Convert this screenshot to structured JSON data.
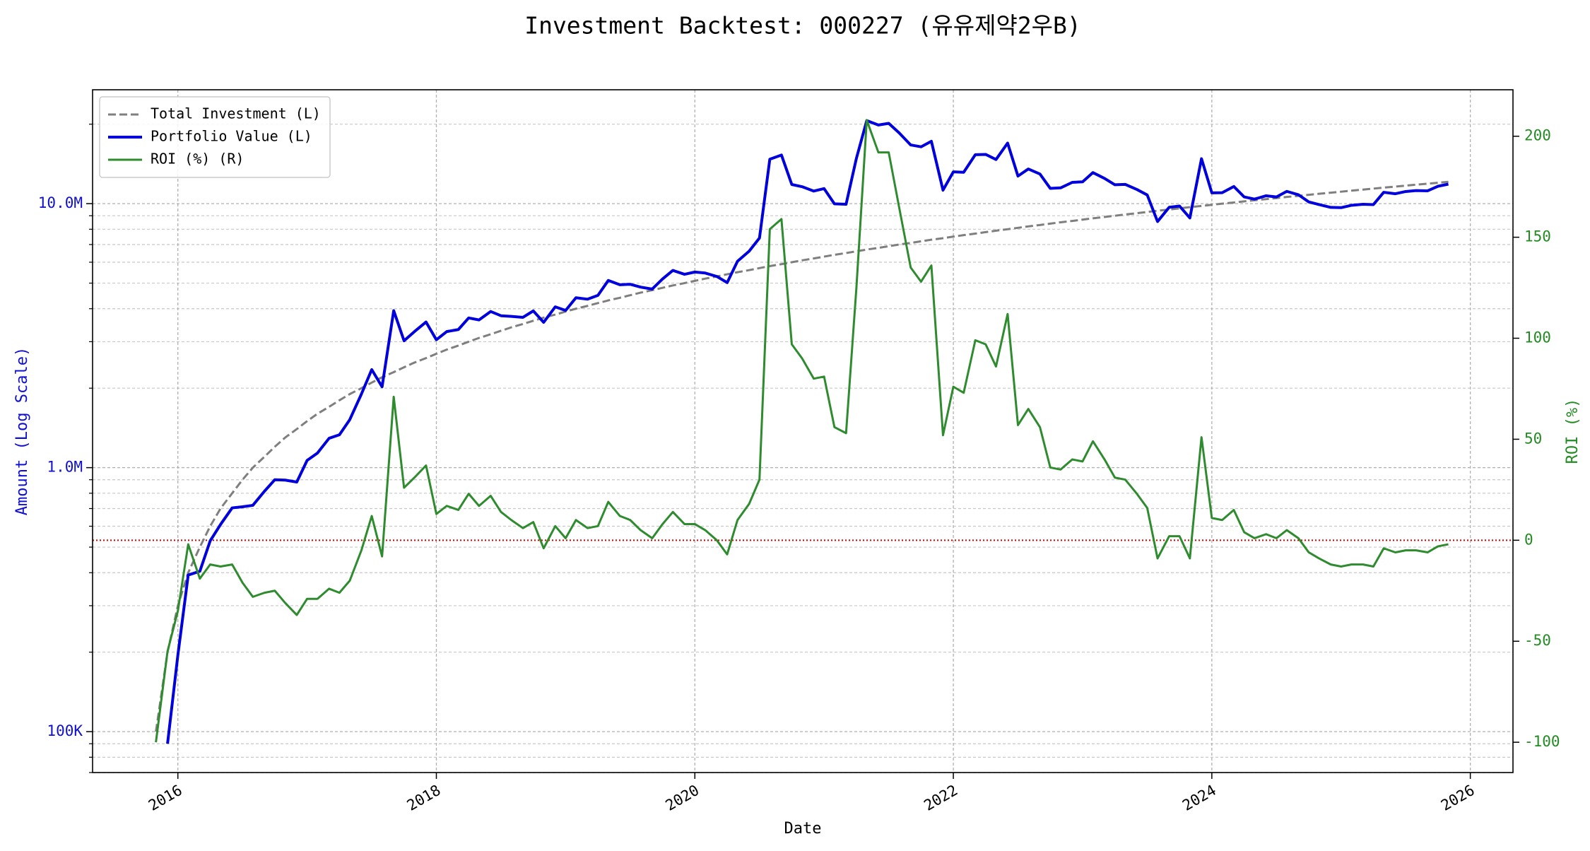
{
  "chart_data": {
    "type": "line",
    "title": "Investment Backtest: 000227 (유유제약2우B)",
    "x_label": "Date",
    "y_label": "Amount (Log Scale)",
    "y2_label": "ROI (%)",
    "y_log": true,
    "grid": true,
    "legend_position": "upper left",
    "xlim": [
      2015.34,
      2026.33
    ],
    "xticks": [
      2016,
      2018,
      2020,
      2022,
      2024,
      2026
    ],
    "ylim": [
      70000,
      27000000
    ],
    "yticks": [
      {
        "value": 100000,
        "label": "100K"
      },
      {
        "value": 1000000,
        "label": "1.0M"
      },
      {
        "value": 10000000,
        "label": "10.0M"
      }
    ],
    "yminorticks": [
      70000,
      80000,
      90000,
      200000,
      300000,
      400000,
      500000,
      600000,
      700000,
      800000,
      900000,
      2000000,
      3000000,
      4000000,
      5000000,
      6000000,
      7000000,
      8000000,
      9000000,
      20000000
    ],
    "y2lim": [
      -115,
      223
    ],
    "y2ticks": [
      -100,
      -50,
      0,
      50,
      100,
      150,
      200
    ],
    "y_color": "#1010d0",
    "y2_color": "#228b22",
    "hlines": [
      {
        "axis": "y2",
        "value": 0,
        "color": "#cc0000",
        "style": "dotted"
      }
    ],
    "x": [
      2015.83,
      2015.92,
      2016.0,
      2016.08,
      2016.17,
      2016.25,
      2016.33,
      2016.42,
      2016.5,
      2016.58,
      2016.67,
      2016.75,
      2016.83,
      2016.92,
      2017.0,
      2017.08,
      2017.17,
      2017.25,
      2017.33,
      2017.42,
      2017.5,
      2017.58,
      2017.67,
      2017.75,
      2017.83,
      2017.92,
      2018.0,
      2018.08,
      2018.17,
      2018.25,
      2018.33,
      2018.42,
      2018.5,
      2018.58,
      2018.67,
      2018.75,
      2018.83,
      2018.92,
      2019.0,
      2019.08,
      2019.17,
      2019.25,
      2019.33,
      2019.42,
      2019.5,
      2019.58,
      2019.67,
      2019.75,
      2019.83,
      2019.92,
      2020.0,
      2020.08,
      2020.17,
      2020.25,
      2020.33,
      2020.42,
      2020.5,
      2020.58,
      2020.67,
      2020.75,
      2020.83,
      2020.92,
      2021.0,
      2021.08,
      2021.17,
      2021.25,
      2021.33,
      2021.42,
      2021.5,
      2021.58,
      2021.67,
      2021.75,
      2021.83,
      2021.92,
      2022.0,
      2022.08,
      2022.17,
      2022.25,
      2022.33,
      2022.42,
      2022.5,
      2022.58,
      2022.67,
      2022.75,
      2022.83,
      2022.92,
      2023.0,
      2023.08,
      2023.17,
      2023.25,
      2023.33,
      2023.42,
      2023.5,
      2023.58,
      2023.67,
      2023.75,
      2023.83,
      2023.92,
      2024.0,
      2024.08,
      2024.17,
      2024.25,
      2024.33,
      2024.42,
      2024.5,
      2024.58,
      2024.67,
      2024.75,
      2024.83,
      2024.92,
      2025.0,
      2025.08,
      2025.17,
      2025.25,
      2025.33,
      2025.42,
      2025.5,
      2025.58,
      2025.67,
      2025.75,
      2025.83
    ],
    "series": [
      {
        "name": "Total Investment (L)",
        "color": "#7f7f7f",
        "style": "dashed",
        "width": 3,
        "axis": "y",
        "values": [
          100000,
          200000,
          300000,
          400000,
          500000,
          600000,
          700000,
          800000,
          900000,
          1000000,
          1100000,
          1200000,
          1300000,
          1400000,
          1500000,
          1600000,
          1700000,
          1800000,
          1900000,
          2000000,
          2100000,
          2200000,
          2300000,
          2400000,
          2500000,
          2600000,
          2700000,
          2800000,
          2900000,
          3000000,
          3100000,
          3200000,
          3300000,
          3400000,
          3500000,
          3600000,
          3700000,
          3800000,
          3900000,
          4000000,
          4100000,
          4200000,
          4300000,
          4400000,
          4500000,
          4600000,
          4700000,
          4800000,
          4900000,
          5000000,
          5100000,
          5200000,
          5300000,
          5400000,
          5500000,
          5600000,
          5700000,
          5800000,
          5900000,
          6000000,
          6100000,
          6200000,
          6300000,
          6400000,
          6500000,
          6600000,
          6700000,
          6800000,
          6900000,
          7000000,
          7100000,
          7200000,
          7300000,
          7400000,
          7500000,
          7600000,
          7700000,
          7800000,
          7900000,
          8000000,
          8100000,
          8200000,
          8300000,
          8400000,
          8500000,
          8600000,
          8700000,
          8800000,
          8900000,
          9000000,
          9100000,
          9200000,
          9300000,
          9400000,
          9500000,
          9600000,
          9700000,
          9800000,
          9900000,
          10000000,
          10100000,
          10200000,
          10300000,
          10400000,
          10500000,
          10600000,
          10700000,
          10800000,
          10900000,
          11000000,
          11100000,
          11200000,
          11300000,
          11400000,
          11500000,
          11600000,
          11700000,
          11800000,
          11900000,
          12000000,
          12100000
        ]
      },
      {
        "name": "Portfolio Value (L)",
        "color": "#0000dd",
        "style": "solid",
        "width": 4,
        "axis": "y",
        "values": [
          null,
          90000,
          195000,
          392000,
          405000,
          528000,
          609000,
          704000,
          711000,
          720000,
          814000,
          900000,
          897000,
          882000,
          1065000,
          1136000,
          1292000,
          1332000,
          1520000,
          1900000,
          2352000,
          2024000,
          3933000,
          3024000,
          3275000,
          3562000,
          3051000,
          3276000,
          3335000,
          3690000,
          3627000,
          3904000,
          3762000,
          3740000,
          3710000,
          3924000,
          3552000,
          4066000,
          3939000,
          4400000,
          4346000,
          4494000,
          5117000,
          4928000,
          4950000,
          4830000,
          4747000,
          5184000,
          5586000,
          5400000,
          5508000,
          5460000,
          5300000,
          5022000,
          6050000,
          6608000,
          7410000,
          14732000,
          15281000,
          11820000,
          11590000,
          11160000,
          11403000,
          9984000,
          9945000,
          14850000,
          20636000,
          19856000,
          20148000,
          18550000,
          16685000,
          16416000,
          17228000,
          11248000,
          13200000,
          13148000,
          15323000,
          15366000,
          14694000,
          16960000,
          12717000,
          13530000,
          12948000,
          11424000,
          11475000,
          12040000,
          12093000,
          13112000,
          12460000,
          11790000,
          11830000,
          11316000,
          10788000,
          8554000,
          9690000,
          9792000,
          8827000,
          14798000,
          10989000,
          11000000,
          11615000,
          10608000,
          10403000,
          10712000,
          10605000,
          11130000,
          10807000,
          10152000,
          9919000,
          9680000,
          9657000,
          9856000,
          9944000,
          9918000,
          11040000,
          10904000,
          11115000,
          11210000,
          11186000,
          11640000,
          11858000
        ]
      },
      {
        "name": "ROI (%) (R)",
        "color": "#2e8b2e",
        "style": "solid",
        "width": 3,
        "axis": "y2",
        "values": [
          -100,
          -55,
          -35,
          -2,
          -19,
          -12,
          -13,
          -12,
          -21,
          -28,
          -26,
          -25,
          -31,
          -37,
          -29,
          -29,
          -24,
          -26,
          -20,
          -5,
          12,
          -8,
          71,
          26,
          31,
          37,
          13,
          17,
          15,
          23,
          17,
          22,
          14,
          10,
          6,
          9,
          -4,
          7,
          1,
          10,
          6,
          7,
          19,
          12,
          10,
          5,
          1,
          8,
          14,
          8,
          8,
          5,
          0,
          -7,
          10,
          18,
          30,
          154,
          159,
          97,
          90,
          80,
          81,
          56,
          53,
          125,
          208,
          192,
          192,
          165,
          135,
          128,
          136,
          52,
          76,
          73,
          99,
          97,
          86,
          112,
          57,
          65,
          56,
          36,
          35,
          40,
          39,
          49,
          40,
          31,
          30,
          23,
          16,
          -9,
          2,
          2,
          -9,
          51,
          11,
          10,
          15,
          4,
          1,
          3,
          1,
          5,
          1,
          -6,
          -9,
          -12,
          -13,
          -12,
          -12,
          -13,
          -4,
          -6,
          -5,
          -5,
          -6,
          -3,
          -2
        ]
      }
    ]
  }
}
